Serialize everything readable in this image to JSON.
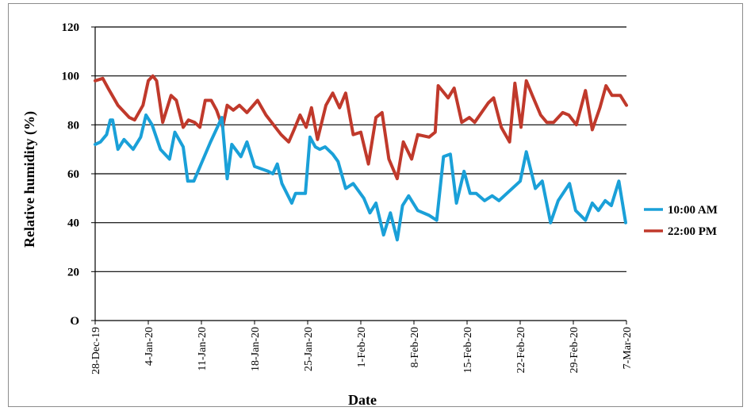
{
  "chart_data": {
    "type": "line",
    "title": "",
    "xlabel": "Date",
    "ylabel": "Relative humidity (%)",
    "ylim": [
      0,
      120
    ],
    "yticks": [
      "O",
      "20",
      "40",
      "60",
      "80",
      "100",
      "120"
    ],
    "xlim": [
      0,
      70
    ],
    "xticks": [
      {
        "label": "28-Dec-19",
        "x": 0
      },
      {
        "label": "4-Jan-20",
        "x": 7
      },
      {
        "label": "11-Jan-20",
        "x": 14
      },
      {
        "label": "18-Jan-20",
        "x": 21
      },
      {
        "label": "25-Jan-20",
        "x": 28
      },
      {
        "label": "1-Feb-20",
        "x": 35
      },
      {
        "label": "8-Feb-20",
        "x": 42
      },
      {
        "label": "15-Feb-20",
        "x": 49
      },
      {
        "label": "22-Feb-20",
        "x": 56
      },
      {
        "label": "29-Feb-20",
        "x": 63
      },
      {
        "label": "7-Mar-20",
        "x": 70
      }
    ],
    "grid": "horizontal",
    "legend_position": "right",
    "series": [
      {
        "name": "10:00 AM",
        "color": "#1aa0d8",
        "points": [
          [
            0,
            72
          ],
          [
            0.7,
            73
          ],
          [
            1.5,
            76
          ],
          [
            2,
            82
          ],
          [
            2.3,
            82
          ],
          [
            3,
            70
          ],
          [
            3.8,
            74
          ],
          [
            5,
            70
          ],
          [
            6,
            75
          ],
          [
            6.7,
            84
          ],
          [
            7.5,
            80
          ],
          [
            8.6,
            70
          ],
          [
            9.8,
            66
          ],
          [
            10.5,
            77
          ],
          [
            11.6,
            71
          ],
          [
            12.2,
            57
          ],
          [
            13,
            57
          ],
          [
            15.2,
            73
          ],
          [
            16.7,
            83
          ],
          [
            17.4,
            58
          ],
          [
            18,
            72
          ],
          [
            19.2,
            67
          ],
          [
            20,
            73
          ],
          [
            21,
            63
          ],
          [
            22.8,
            61
          ],
          [
            23.4,
            60
          ],
          [
            24,
            64
          ],
          [
            24.6,
            56
          ],
          [
            25.9,
            48
          ],
          [
            26.4,
            52
          ],
          [
            27.7,
            52
          ],
          [
            28.3,
            75
          ],
          [
            29,
            71
          ],
          [
            29.6,
            70
          ],
          [
            30.3,
            71
          ],
          [
            31.3,
            68
          ],
          [
            32,
            65
          ],
          [
            33,
            54
          ],
          [
            34,
            56
          ],
          [
            35.4,
            50
          ],
          [
            36.2,
            44
          ],
          [
            37,
            48
          ],
          [
            38,
            35
          ],
          [
            38.9,
            44
          ],
          [
            39.8,
            33
          ],
          [
            40.5,
            47
          ],
          [
            41.3,
            51
          ],
          [
            42.5,
            45
          ],
          [
            44,
            43
          ],
          [
            45,
            41
          ],
          [
            45.9,
            67
          ],
          [
            46.8,
            68
          ],
          [
            47.6,
            48
          ],
          [
            48.6,
            61
          ],
          [
            49.4,
            52
          ],
          [
            50.2,
            52
          ],
          [
            51.3,
            49
          ],
          [
            52.3,
            51
          ],
          [
            53.2,
            49
          ],
          [
            56,
            57
          ],
          [
            56.8,
            69
          ],
          [
            58,
            54
          ],
          [
            58.9,
            57
          ],
          [
            60,
            40
          ],
          [
            61,
            49
          ],
          [
            62.5,
            56
          ],
          [
            63.3,
            45
          ],
          [
            64.6,
            41
          ],
          [
            65.5,
            48
          ],
          [
            66.3,
            45
          ],
          [
            67.2,
            49
          ],
          [
            68,
            47
          ],
          [
            69,
            57
          ],
          [
            69.9,
            40
          ]
        ]
      },
      {
        "name": "22:00 PM",
        "color": "#c0392b",
        "points": [
          [
            0,
            98
          ],
          [
            1,
            99
          ],
          [
            1.7,
            95
          ],
          [
            3,
            88
          ],
          [
            4.5,
            83
          ],
          [
            5.2,
            82
          ],
          [
            6.3,
            88
          ],
          [
            7,
            98
          ],
          [
            7.6,
            100
          ],
          [
            8.1,
            98
          ],
          [
            8.9,
            81
          ],
          [
            10,
            92
          ],
          [
            10.7,
            90
          ],
          [
            11.6,
            79
          ],
          [
            12.3,
            82
          ],
          [
            13.1,
            81
          ],
          [
            13.8,
            79
          ],
          [
            14.5,
            90
          ],
          [
            15.3,
            90
          ],
          [
            16,
            86
          ],
          [
            16.8,
            79
          ],
          [
            17.4,
            88
          ],
          [
            18.2,
            86
          ],
          [
            19,
            88
          ],
          [
            20,
            85
          ],
          [
            21.4,
            90
          ],
          [
            22.5,
            84
          ],
          [
            23.5,
            80
          ],
          [
            24.5,
            76
          ],
          [
            25.5,
            73
          ],
          [
            26.2,
            78
          ],
          [
            27,
            84
          ],
          [
            27.8,
            79
          ],
          [
            28.5,
            87
          ],
          [
            29.3,
            74
          ],
          [
            30.4,
            88
          ],
          [
            31.3,
            93
          ],
          [
            32.2,
            87
          ],
          [
            33,
            93
          ],
          [
            34,
            76
          ],
          [
            35,
            77
          ],
          [
            36,
            64
          ],
          [
            37,
            83
          ],
          [
            37.8,
            85
          ],
          [
            38.7,
            66
          ],
          [
            39.8,
            58
          ],
          [
            40.6,
            73
          ],
          [
            41.7,
            66
          ],
          [
            42.5,
            76
          ],
          [
            44,
            75
          ],
          [
            44.8,
            77
          ],
          [
            45.2,
            96
          ],
          [
            46.5,
            91
          ],
          [
            47.3,
            95
          ],
          [
            48.3,
            81
          ],
          [
            49.3,
            83
          ],
          [
            50,
            81
          ],
          [
            51.8,
            89
          ],
          [
            52.5,
            91
          ],
          [
            53.5,
            79
          ],
          [
            54.6,
            73
          ],
          [
            55.3,
            97
          ],
          [
            56.1,
            79
          ],
          [
            56.8,
            98
          ],
          [
            57.6,
            92
          ],
          [
            58.7,
            84
          ],
          [
            59.5,
            81
          ],
          [
            60.4,
            81
          ],
          [
            61.6,
            85
          ],
          [
            62.4,
            84
          ],
          [
            63.4,
            80
          ],
          [
            64.6,
            94
          ],
          [
            65.5,
            78
          ],
          [
            66.5,
            87
          ],
          [
            67.3,
            96
          ],
          [
            68.1,
            92
          ],
          [
            69.2,
            92
          ],
          [
            70,
            88
          ]
        ]
      }
    ]
  }
}
